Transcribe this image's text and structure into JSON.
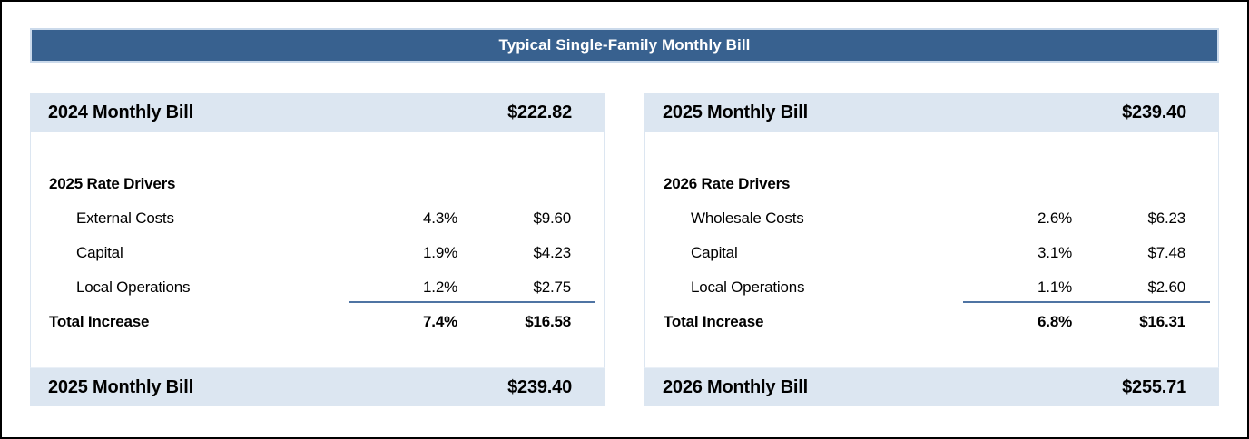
{
  "page": {
    "title": "Typical Single-Family Monthly Bill"
  },
  "colors": {
    "title_bar_bg": "#38618F",
    "title_bar_border": "#CBDAEB",
    "title_text": "#FFFFFF",
    "band_bg": "#DCE6F1",
    "total_rule": "#4F74A3",
    "body_text": "#000000",
    "outer_border": "#000000"
  },
  "panels": [
    {
      "header": {
        "label": "2024 Monthly Bill",
        "amount": "$222.82"
      },
      "drivers_heading": "2025 Rate Drivers",
      "rows": [
        {
          "label": "External Costs",
          "percent": "4.3%",
          "amount": "$9.60"
        },
        {
          "label": "Capital",
          "percent": "1.9%",
          "amount": "$4.23"
        },
        {
          "label": "Local Operations",
          "percent": "1.2%",
          "amount": "$2.75"
        }
      ],
      "total": {
        "label": "Total Increase",
        "percent": "7.4%",
        "amount": "$16.58"
      },
      "footer": {
        "label": "2025 Monthly Bill",
        "amount": "$239.40"
      }
    },
    {
      "header": {
        "label": "2025 Monthly Bill",
        "amount": "$239.40"
      },
      "drivers_heading": "2026 Rate Drivers",
      "rows": [
        {
          "label": "Wholesale Costs",
          "percent": "2.6%",
          "amount": "$6.23"
        },
        {
          "label": "Capital",
          "percent": "3.1%",
          "amount": "$7.48"
        },
        {
          "label": "Local Operations",
          "percent": "1.1%",
          "amount": "$2.60"
        }
      ],
      "total": {
        "label": "Total Increase",
        "percent": "6.8%",
        "amount": "$16.31"
      },
      "footer": {
        "label": "2026 Monthly Bill",
        "amount": "$255.71"
      }
    }
  ]
}
